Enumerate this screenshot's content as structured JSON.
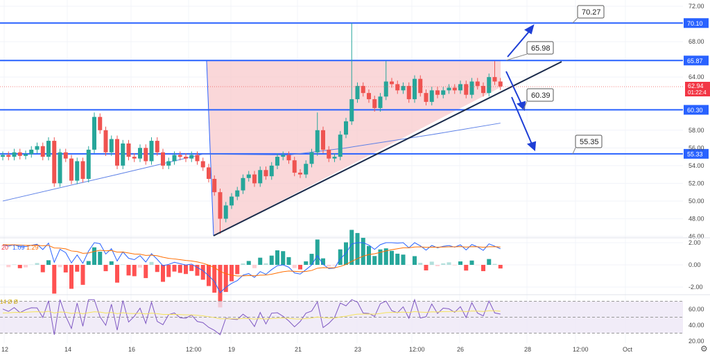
{
  "chart_data": {
    "type": "candlestick",
    "price_axis": {
      "ticks": [
        "72.00",
        "68.00",
        "64.00",
        "58.00",
        "56.00",
        "54.00",
        "52.00",
        "50.00",
        "48.00",
        "46.00"
      ],
      "range": [
        46,
        72
      ]
    },
    "x_axis": {
      "ticks": [
        "12",
        "14",
        "16",
        "12:00",
        "19",
        "21",
        "23",
        "12:00",
        "26",
        "28",
        "12:00",
        "Oct"
      ]
    },
    "closes": [
      55.2,
      55.0,
      55.5,
      55.1,
      55.3,
      55.8,
      56.2,
      55.0,
      56.8,
      52.0,
      55.5,
      54.8,
      52.3,
      54.5,
      52.5,
      55.8,
      59.5,
      58.0,
      55.5,
      57.0,
      54.0,
      56.5,
      55.0,
      54.8,
      56.0,
      54.5,
      56.8,
      55.5,
      54.0,
      54.5,
      55.2,
      55.0,
      54.8,
      55.2,
      54.5,
      53.8,
      52.5,
      51.0,
      48.0,
      49.5,
      50.5,
      51.2,
      52.6,
      53.0,
      52.0,
      53.5,
      52.8,
      54.0,
      55.0,
      55.2,
      54.6,
      53.2,
      53.0,
      54.2,
      55.5,
      58.0,
      55.8,
      54.8,
      55.0,
      57.5,
      59.0,
      61.5,
      63.0,
      62.2,
      61.5,
      60.5,
      61.8,
      63.5,
      63.2,
      62.5,
      63.0,
      61.5,
      63.8,
      62.2,
      61.2,
      62.5,
      62.0,
      62.5,
      62.8,
      62.5,
      63.2,
      62.0,
      63.5,
      63.0,
      62.2,
      64.0,
      63.5,
      62.94
    ],
    "first_open": 55.0,
    "notable_highs": {
      "61": 70.1,
      "67": 65.8,
      "86": 65.8,
      "16": 60.0,
      "55": 60.0
    },
    "notable_lows": {
      "38": 46.3
    },
    "moving_average": [
      [
        0,
        50
      ],
      [
        20,
        53
      ],
      [
        35,
        55.3
      ],
      [
        50,
        55.2
      ],
      [
        60,
        56
      ],
      [
        75,
        57.5
      ],
      [
        87,
        58.8
      ]
    ],
    "levels": [
      {
        "value": 70.1,
        "label": "70.10"
      },
      {
        "value": 65.87,
        "label": "65.87"
      },
      {
        "value": 60.3,
        "label": "60.30"
      },
      {
        "value": 55.33,
        "label": "55.33"
      }
    ],
    "last_price": {
      "value": 62.94,
      "label": "62.94",
      "countdown": "01:22:4"
    },
    "annotations": [
      "70.27",
      "65.98",
      "60.39",
      "55.35"
    ],
    "colors": {
      "up": "#26a69a",
      "down": "#ef5350",
      "level": "#2962ff",
      "triangle": "#f8c9cc"
    },
    "macd": {
      "legend": [
        "20",
        "1.09",
        "1.29"
      ],
      "ticks": [
        "2.00",
        "0.00",
        "-2.00"
      ]
    },
    "rsi": {
      "legend": "14 Ø Ø",
      "ticks": [
        "60.00",
        "40.00",
        "20.00"
      ]
    }
  }
}
